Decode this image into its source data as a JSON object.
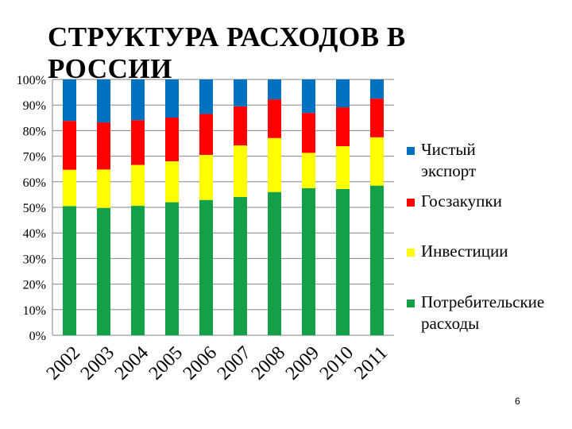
{
  "slide": {
    "title": "СТРУКТУРА РАСХОДОВ В РОССИИ",
    "page_number": "6"
  },
  "chart_data": {
    "type": "bar",
    "stacked": true,
    "percent_stacked": true,
    "categories": [
      "2002",
      "2003",
      "2004",
      "2005",
      "2006",
      "2007",
      "2008",
      "2009",
      "2010",
      "2011"
    ],
    "series": [
      {
        "name": "Потребительские расходы",
        "color": "#13a048",
        "values": [
          50.5,
          49.8,
          50.6,
          52.0,
          52.9,
          54.1,
          56.0,
          57.5,
          57.2,
          58.5
        ]
      },
      {
        "name": "Инвестиции",
        "color": "#ffff00",
        "values": [
          14.2,
          15.0,
          16.0,
          16.0,
          17.6,
          20.1,
          21.1,
          13.8,
          16.7,
          18.9
        ]
      },
      {
        "name": "Госзакупки",
        "color": "#ff0000",
        "values": [
          19.1,
          18.4,
          17.5,
          17.1,
          16.0,
          15.3,
          15.1,
          15.6,
          15.2,
          15.1
        ]
      },
      {
        "name": "Чистый экспорт",
        "color": "#0070c0",
        "values": [
          16.2,
          16.8,
          15.9,
          14.9,
          13.5,
          10.5,
          7.8,
          13.1,
          10.9,
          7.5
        ]
      }
    ],
    "y_ticks": [
      "0%",
      "10%",
      "20%",
      "30%",
      "40%",
      "50%",
      "60%",
      "70%",
      "80%",
      "90%",
      "100%"
    ],
    "ylim": [
      0,
      100
    ],
    "grid": true,
    "legend_position": "right"
  }
}
